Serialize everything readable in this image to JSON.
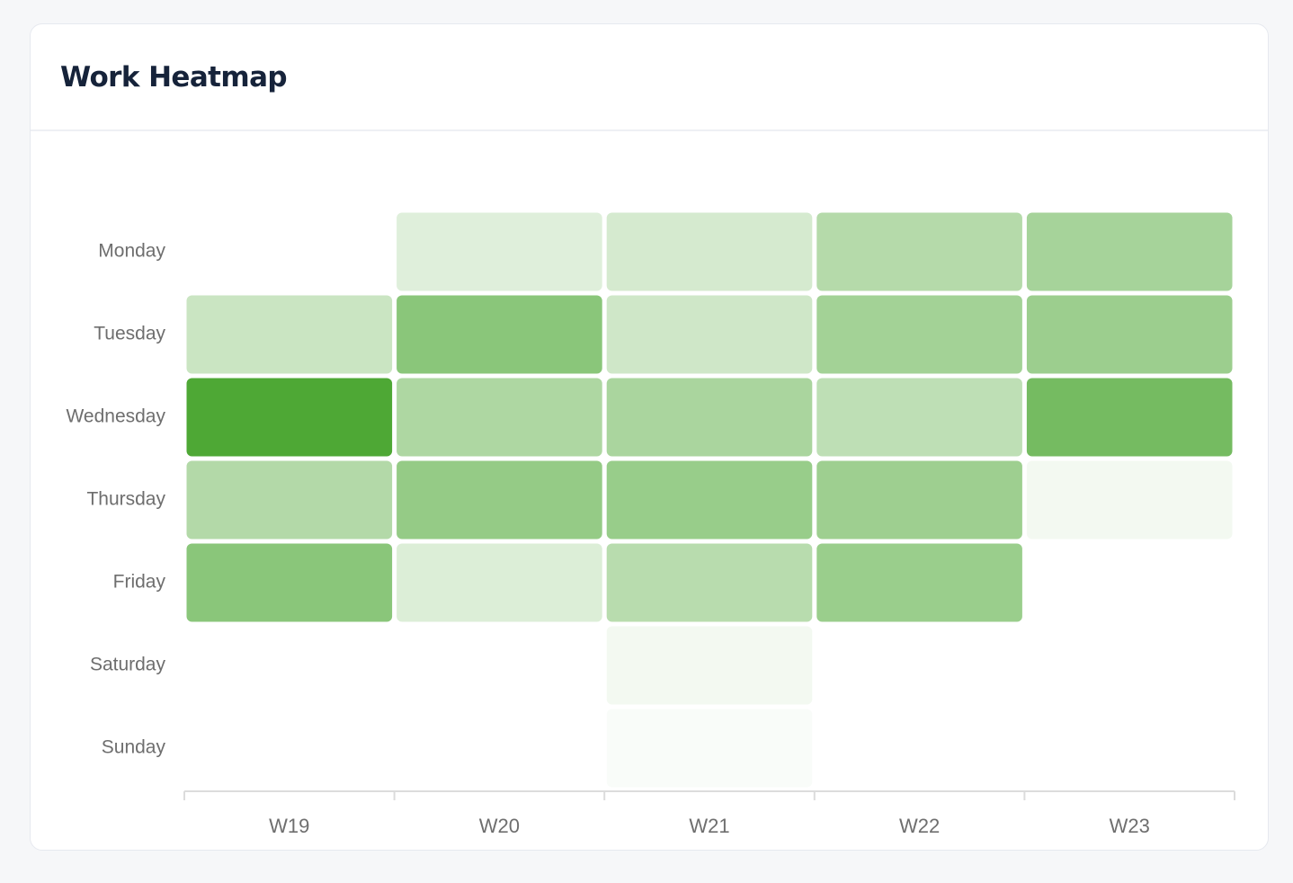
{
  "card": {
    "title": "Work Heatmap"
  },
  "colors": {
    "cell_base": "#4ea835",
    "axis_line": "#dcdcdc",
    "label_text": "#6e6e6e",
    "title_text": "#16233a"
  },
  "chart_data": {
    "type": "heatmap",
    "title": "Work Heatmap",
    "x_categories": [
      "W19",
      "W20",
      "W21",
      "W22",
      "W23"
    ],
    "y_categories": [
      "Monday",
      "Tuesday",
      "Wednesday",
      "Thursday",
      "Friday",
      "Saturday",
      "Sunday"
    ],
    "values": [
      [
        null,
        0.18,
        0.24,
        0.42,
        0.5
      ],
      [
        0.3,
        0.66,
        0.27,
        0.52,
        0.56
      ],
      [
        1.0,
        0.46,
        0.48,
        0.37,
        0.78
      ],
      [
        0.43,
        0.6,
        0.58,
        0.55,
        0.07
      ],
      [
        0.66,
        0.2,
        0.4,
        0.57,
        null
      ],
      [
        null,
        null,
        0.07,
        null,
        null
      ],
      [
        null,
        null,
        0.02,
        null,
        null
      ]
    ],
    "value_scale": "relative intensity 0-1",
    "legend": "none",
    "grid": false
  }
}
